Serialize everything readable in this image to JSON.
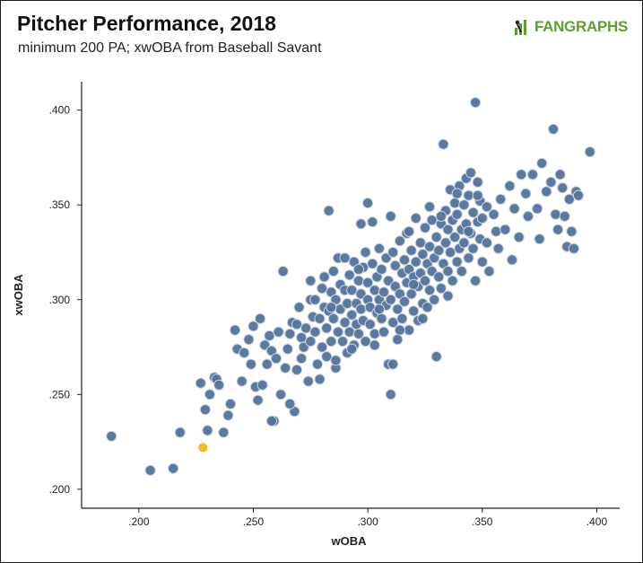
{
  "header": {
    "title": "Pitcher Performance, 2018",
    "subtitle": "minimum 200 PA; xwOBA from Baseball Savant",
    "logo_text": "FANGRAPHS"
  },
  "colors": {
    "point": "#53739a",
    "point_stroke": "#c9d5e2",
    "highlight": "#f1bd2a",
    "logo_green": "#5e9e2e",
    "axis": "#222222"
  },
  "chart_data": {
    "type": "scatter",
    "xlabel": "wOBA",
    "ylabel": "xwOBA",
    "xlim": [
      0.175,
      0.41
    ],
    "ylim": [
      0.19,
      0.415
    ],
    "xticks": [
      0.2,
      0.25,
      0.3,
      0.35,
      0.4
    ],
    "xtick_labels": [
      ".200",
      ".250",
      ".300",
      ".350",
      ".400"
    ],
    "yticks": [
      0.2,
      0.25,
      0.3,
      0.35,
      0.4
    ],
    "ytick_labels": [
      ".200",
      ".250",
      ".300",
      ".350",
      ".400"
    ],
    "grid": false,
    "highlight": {
      "x": 0.228,
      "y": 0.222
    },
    "points": [
      [
        0.188,
        0.228
      ],
      [
        0.205,
        0.21
      ],
      [
        0.215,
        0.211
      ],
      [
        0.218,
        0.23
      ],
      [
        0.227,
        0.256
      ],
      [
        0.229,
        0.242
      ],
      [
        0.23,
        0.231
      ],
      [
        0.231,
        0.25
      ],
      [
        0.233,
        0.259
      ],
      [
        0.234,
        0.258
      ],
      [
        0.235,
        0.255
      ],
      [
        0.237,
        0.23
      ],
      [
        0.239,
        0.239
      ],
      [
        0.24,
        0.245
      ],
      [
        0.242,
        0.284
      ],
      [
        0.243,
        0.274
      ],
      [
        0.245,
        0.257
      ],
      [
        0.246,
        0.272
      ],
      [
        0.248,
        0.279
      ],
      [
        0.249,
        0.266
      ],
      [
        0.25,
        0.286
      ],
      [
        0.251,
        0.254
      ],
      [
        0.252,
        0.247
      ],
      [
        0.253,
        0.29
      ],
      [
        0.254,
        0.255
      ],
      [
        0.255,
        0.276
      ],
      [
        0.256,
        0.266
      ],
      [
        0.257,
        0.281
      ],
      [
        0.258,
        0.273
      ],
      [
        0.259,
        0.236
      ],
      [
        0.26,
        0.269
      ],
      [
        0.261,
        0.283
      ],
      [
        0.262,
        0.25
      ],
      [
        0.263,
        0.315
      ],
      [
        0.264,
        0.264
      ],
      [
        0.265,
        0.274
      ],
      [
        0.266,
        0.282
      ],
      [
        0.267,
        0.288
      ],
      [
        0.268,
        0.241
      ],
      [
        0.269,
        0.263
      ],
      [
        0.27,
        0.296
      ],
      [
        0.271,
        0.28
      ],
      [
        0.271,
        0.269
      ],
      [
        0.272,
        0.275
      ],
      [
        0.273,
        0.285
      ],
      [
        0.274,
        0.257
      ],
      [
        0.275,
        0.3
      ],
      [
        0.275,
        0.278
      ],
      [
        0.276,
        0.291
      ],
      [
        0.277,
        0.283
      ],
      [
        0.278,
        0.266
      ],
      [
        0.279,
        0.29
      ],
      [
        0.279,
        0.258
      ],
      [
        0.28,
        0.275
      ],
      [
        0.281,
        0.312
      ],
      [
        0.281,
        0.296
      ],
      [
        0.282,
        0.285
      ],
      [
        0.282,
        0.27
      ],
      [
        0.283,
        0.294
      ],
      [
        0.284,
        0.278
      ],
      [
        0.284,
        0.304
      ],
      [
        0.285,
        0.29
      ],
      [
        0.285,
        0.315
      ],
      [
        0.286,
        0.264
      ],
      [
        0.286,
        0.3
      ],
      [
        0.287,
        0.283
      ],
      [
        0.287,
        0.322
      ],
      [
        0.288,
        0.308
      ],
      [
        0.288,
        0.295
      ],
      [
        0.289,
        0.278
      ],
      [
        0.29,
        0.305
      ],
      [
        0.29,
        0.288
      ],
      [
        0.291,
        0.272
      ],
      [
        0.291,
        0.298
      ],
      [
        0.292,
        0.313
      ],
      [
        0.292,
        0.283
      ],
      [
        0.293,
        0.292
      ],
      [
        0.293,
        0.305
      ],
      [
        0.294,
        0.276
      ],
      [
        0.294,
        0.32
      ],
      [
        0.295,
        0.298
      ],
      [
        0.295,
        0.287
      ],
      [
        0.296,
        0.31
      ],
      [
        0.296,
        0.282
      ],
      [
        0.297,
        0.295
      ],
      [
        0.297,
        0.303
      ],
      [
        0.298,
        0.317
      ],
      [
        0.298,
        0.289
      ],
      [
        0.299,
        0.325
      ],
      [
        0.299,
        0.278
      ],
      [
        0.3,
        0.3
      ],
      [
        0.3,
        0.309
      ],
      [
        0.301,
        0.287
      ],
      [
        0.301,
        0.296
      ],
      [
        0.302,
        0.341
      ],
      [
        0.302,
        0.319
      ],
      [
        0.303,
        0.305
      ],
      [
        0.303,
        0.282
      ],
      [
        0.304,
        0.312
      ],
      [
        0.304,
        0.293
      ],
      [
        0.305,
        0.3
      ],
      [
        0.305,
        0.327
      ],
      [
        0.306,
        0.29
      ],
      [
        0.306,
        0.316
      ],
      [
        0.307,
        0.304
      ],
      [
        0.307,
        0.283
      ],
      [
        0.308,
        0.297
      ],
      [
        0.308,
        0.322
      ],
      [
        0.309,
        0.31
      ],
      [
        0.309,
        0.266
      ],
      [
        0.31,
        0.3
      ],
      [
        0.31,
        0.25
      ],
      [
        0.311,
        0.325
      ],
      [
        0.311,
        0.288
      ],
      [
        0.312,
        0.307
      ],
      [
        0.312,
        0.318
      ],
      [
        0.313,
        0.295
      ],
      [
        0.313,
        0.279
      ],
      [
        0.314,
        0.331
      ],
      [
        0.314,
        0.303
      ],
      [
        0.315,
        0.314
      ],
      [
        0.315,
        0.29
      ],
      [
        0.316,
        0.321
      ],
      [
        0.316,
        0.299
      ],
      [
        0.317,
        0.309
      ],
      [
        0.317,
        0.335
      ],
      [
        0.318,
        0.284
      ],
      [
        0.318,
        0.316
      ],
      [
        0.319,
        0.303
      ],
      [
        0.319,
        0.326
      ],
      [
        0.32,
        0.294
      ],
      [
        0.32,
        0.312
      ],
      [
        0.321,
        0.32
      ],
      [
        0.321,
        0.343
      ],
      [
        0.322,
        0.307
      ],
      [
        0.322,
        0.289
      ],
      [
        0.323,
        0.33
      ],
      [
        0.323,
        0.314
      ],
      [
        0.324,
        0.298
      ],
      [
        0.324,
        0.324
      ],
      [
        0.325,
        0.338
      ],
      [
        0.325,
        0.31
      ],
      [
        0.326,
        0.319
      ],
      [
        0.326,
        0.296
      ],
      [
        0.327,
        0.328
      ],
      [
        0.327,
        0.305
      ],
      [
        0.328,
        0.315
      ],
      [
        0.328,
        0.342
      ],
      [
        0.329,
        0.322
      ],
      [
        0.329,
        0.3
      ],
      [
        0.33,
        0.333
      ],
      [
        0.33,
        0.27
      ],
      [
        0.331,
        0.312
      ],
      [
        0.331,
        0.326
      ],
      [
        0.332,
        0.34
      ],
      [
        0.332,
        0.306
      ],
      [
        0.333,
        0.382
      ],
      [
        0.333,
        0.319
      ],
      [
        0.334,
        0.33
      ],
      [
        0.334,
        0.347
      ],
      [
        0.335,
        0.315
      ],
      [
        0.335,
        0.337
      ],
      [
        0.336,
        0.325
      ],
      [
        0.336,
        0.358
      ],
      [
        0.337,
        0.342
      ],
      [
        0.337,
        0.31
      ],
      [
        0.338,
        0.333
      ],
      [
        0.338,
        0.351
      ],
      [
        0.339,
        0.32
      ],
      [
        0.339,
        0.345
      ],
      [
        0.34,
        0.327
      ],
      [
        0.34,
        0.36
      ],
      [
        0.341,
        0.337
      ],
      [
        0.341,
        0.315
      ],
      [
        0.342,
        0.35
      ],
      [
        0.342,
        0.33
      ],
      [
        0.343,
        0.364
      ],
      [
        0.343,
        0.34
      ],
      [
        0.344,
        0.322
      ],
      [
        0.344,
        0.355
      ],
      [
        0.345,
        0.335
      ],
      [
        0.345,
        0.367
      ],
      [
        0.346,
        0.327
      ],
      [
        0.346,
        0.346
      ],
      [
        0.347,
        0.404
      ],
      [
        0.347,
        0.31
      ],
      [
        0.348,
        0.341
      ],
      [
        0.348,
        0.362
      ],
      [
        0.349,
        0.332
      ],
      [
        0.349,
        0.352
      ],
      [
        0.35,
        0.32
      ],
      [
        0.35,
        0.343
      ],
      [
        0.352,
        0.33
      ],
      [
        0.353,
        0.315
      ],
      [
        0.355,
        0.345
      ],
      [
        0.356,
        0.336
      ],
      [
        0.357,
        0.327
      ],
      [
        0.358,
        0.353
      ],
      [
        0.36,
        0.337
      ],
      [
        0.362,
        0.36
      ],
      [
        0.363,
        0.321
      ],
      [
        0.364,
        0.348
      ],
      [
        0.366,
        0.333
      ],
      [
        0.367,
        0.366
      ],
      [
        0.369,
        0.356
      ],
      [
        0.37,
        0.344
      ],
      [
        0.372,
        0.366
      ],
      [
        0.374,
        0.348
      ],
      [
        0.375,
        0.332
      ],
      [
        0.376,
        0.372
      ],
      [
        0.378,
        0.357
      ],
      [
        0.38,
        0.362
      ],
      [
        0.381,
        0.39
      ],
      [
        0.382,
        0.345
      ],
      [
        0.383,
        0.337
      ],
      [
        0.384,
        0.366
      ],
      [
        0.385,
        0.359
      ],
      [
        0.386,
        0.344
      ],
      [
        0.387,
        0.328
      ],
      [
        0.388,
        0.353
      ],
      [
        0.389,
        0.336
      ],
      [
        0.39,
        0.327
      ],
      [
        0.391,
        0.357
      ],
      [
        0.392,
        0.355
      ],
      [
        0.397,
        0.378
      ],
      [
        0.29,
        0.322
      ],
      [
        0.305,
        0.295
      ],
      [
        0.318,
        0.336
      ],
      [
        0.275,
        0.31
      ],
      [
        0.297,
        0.34
      ],
      [
        0.283,
        0.347
      ],
      [
        0.3,
        0.351
      ],
      [
        0.31,
        0.344
      ],
      [
        0.286,
        0.268
      ],
      [
        0.311,
        0.266
      ],
      [
        0.293,
        0.274
      ],
      [
        0.266,
        0.245
      ],
      [
        0.258,
        0.236
      ],
      [
        0.269,
        0.287
      ],
      [
        0.314,
        0.284
      ],
      [
        0.327,
        0.349
      ],
      [
        0.332,
        0.344
      ],
      [
        0.339,
        0.356
      ],
      [
        0.344,
        0.336
      ],
      [
        0.28,
        0.306
      ],
      [
        0.296,
        0.316
      ],
      [
        0.303,
        0.276
      ],
      [
        0.32,
        0.308
      ],
      [
        0.335,
        0.302
      ],
      [
        0.348,
        0.355
      ],
      [
        0.352,
        0.349
      ],
      [
        0.324,
        0.29
      ],
      [
        0.284,
        0.296
      ],
      [
        0.277,
        0.3
      ]
    ]
  }
}
